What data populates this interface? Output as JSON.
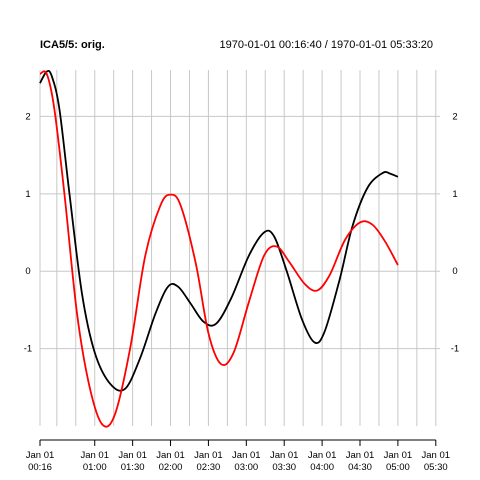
{
  "chart_data": {
    "type": "line",
    "title": "ICA5/5:  orig.",
    "subtitle": "1970-01-01 00:16:40 / 1970-01-01 05:33:20",
    "xlabel": "",
    "ylabel": "",
    "xlim_minutes": [
      16.67,
      333.33
    ],
    "ylim": [
      -2.0,
      2.6
    ],
    "grid": true,
    "y_ticks": [
      -1,
      0,
      1,
      2
    ],
    "y_tick_labels": [
      "-1",
      "0",
      "1",
      "2"
    ],
    "x_ticks": [
      {
        "t": 16.67,
        "line1": "Jan 01",
        "line2": "00:16"
      },
      {
        "t": 60,
        "line1": "Jan 01",
        "line2": "01:00"
      },
      {
        "t": 90,
        "line1": "Jan 01",
        "line2": "01:30"
      },
      {
        "t": 120,
        "line1": "Jan 01",
        "line2": "02:00"
      },
      {
        "t": 150,
        "line1": "Jan 01",
        "line2": "02:30"
      },
      {
        "t": 180,
        "line1": "Jan 01",
        "line2": "03:00"
      },
      {
        "t": 210,
        "line1": "Jan 01",
        "line2": "03:30"
      },
      {
        "t": 240,
        "line1": "Jan 01",
        "line2": "04:00"
      },
      {
        "t": 270,
        "line1": "Jan 01",
        "line2": "04:30"
      },
      {
        "t": 300,
        "line1": "Jan 01",
        "line2": "05:00"
      },
      {
        "t": 330,
        "line1": "Jan 01",
        "line2": "05:30"
      }
    ],
    "vertical_grid_minutes": [
      16.67,
      30,
      45,
      60,
      75,
      90,
      105,
      120,
      135,
      150,
      165,
      180,
      195,
      210,
      225,
      240,
      255,
      270,
      285,
      300,
      315,
      330
    ],
    "series": [
      {
        "color": "#000000",
        "points": [
          [
            16.67,
            2.43
          ],
          [
            22,
            2.58
          ],
          [
            26,
            2.52
          ],
          [
            32,
            2.1
          ],
          [
            40,
            1.0
          ],
          [
            50,
            -0.3
          ],
          [
            60,
            -1.05
          ],
          [
            72,
            -1.45
          ],
          [
            84,
            -1.52
          ],
          [
            96,
            -1.12
          ],
          [
            108,
            -0.55
          ],
          [
            118,
            -0.2
          ],
          [
            126,
            -0.2
          ],
          [
            136,
            -0.42
          ],
          [
            146,
            -0.65
          ],
          [
            156,
            -0.68
          ],
          [
            168,
            -0.35
          ],
          [
            182,
            0.2
          ],
          [
            194,
            0.5
          ],
          [
            202,
            0.45
          ],
          [
            212,
            0.0
          ],
          [
            224,
            -0.62
          ],
          [
            234,
            -0.92
          ],
          [
            242,
            -0.78
          ],
          [
            254,
            -0.1
          ],
          [
            264,
            0.58
          ],
          [
            276,
            1.08
          ],
          [
            288,
            1.27
          ],
          [
            294,
            1.26
          ],
          [
            300,
            1.22
          ]
        ]
      },
      {
        "color": "#ff0000",
        "points": [
          [
            16.67,
            2.55
          ],
          [
            22,
            2.55
          ],
          [
            28,
            2.1
          ],
          [
            36,
            1.0
          ],
          [
            46,
            -0.55
          ],
          [
            56,
            -1.5
          ],
          [
            66,
            -1.98
          ],
          [
            76,
            -1.85
          ],
          [
            88,
            -1.0
          ],
          [
            100,
            0.2
          ],
          [
            112,
            0.85
          ],
          [
            120,
            0.99
          ],
          [
            128,
            0.85
          ],
          [
            140,
            0.1
          ],
          [
            150,
            -0.8
          ],
          [
            160,
            -1.2
          ],
          [
            170,
            -1.05
          ],
          [
            182,
            -0.4
          ],
          [
            194,
            0.2
          ],
          [
            204,
            0.32
          ],
          [
            214,
            0.12
          ],
          [
            226,
            -0.16
          ],
          [
            236,
            -0.25
          ],
          [
            246,
            -0.05
          ],
          [
            258,
            0.4
          ],
          [
            270,
            0.63
          ],
          [
            280,
            0.6
          ],
          [
            290,
            0.38
          ],
          [
            300,
            0.08
          ]
        ]
      }
    ]
  }
}
